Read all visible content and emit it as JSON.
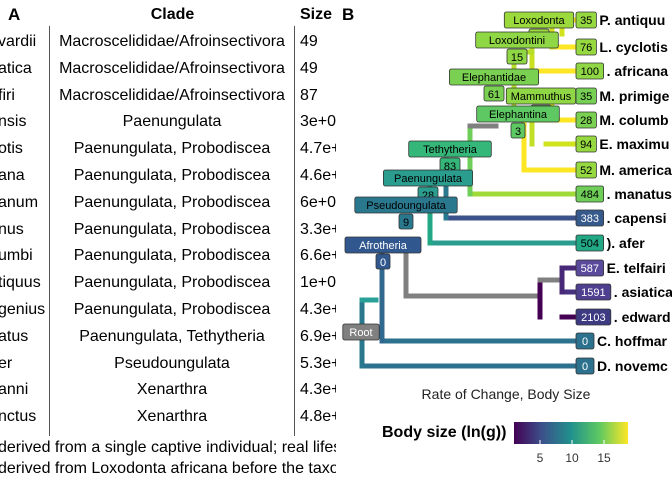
{
  "panel_a": {
    "letter": "A",
    "headers": {
      "species": "",
      "clade": "Clade",
      "size": "Size"
    },
    "rows": [
      {
        "species": "vardii",
        "clade": "Macroscelididae/Afroinsectivora",
        "size": "49"
      },
      {
        "species": "atica",
        "clade": "Macroscelididae/Afroinsectivora",
        "size": "49"
      },
      {
        "species": "firi",
        "clade": "Macroscelididae/Afroinsectivora",
        "size": "87"
      },
      {
        "species": "nsis",
        "clade": "Paenungulata",
        "size": "3e+0"
      },
      {
        "species": "otis",
        "clade": "Paenungulata, Probodiscea",
        "size": "4.7e+"
      },
      {
        "species": "ana",
        "clade": "Paenungulata, Probodiscea",
        "size": "4.6e+"
      },
      {
        "species": "anum",
        "clade": "Paenungulata, Probodiscea",
        "size": "6e+0"
      },
      {
        "species": "nus",
        "clade": "Paenungulata, Probodiscea",
        "size": "3.3e+"
      },
      {
        "species": "umbi",
        "clade": "Paenungulata, Probodiscea",
        "size": "6.6e+"
      },
      {
        "species": "tiquus",
        "clade": "Paenungulata, Probodiscea",
        "size": "1e+0"
      },
      {
        "species": "genius",
        "clade": "Paenungulata, Probodiscea",
        "size": "4.3e+"
      },
      {
        "species": "atus",
        "clade": "Paenungulata, Tethytheria",
        "size": "6.9e+"
      },
      {
        "species": "er",
        "clade": "Pseudoungulata",
        "size": "5.3e+"
      },
      {
        "species": "anni",
        "clade": "Xenarthra",
        "size": "4.3e+"
      },
      {
        "species": "nctus",
        "clade": "Xenarthra",
        "size": "4.8e+"
      }
    ],
    "footnotes": [
      "derived from a single captive individual; real lifes",
      "derived from Loxodonta africana before the taxo"
    ]
  },
  "panel_b": {
    "letter": "B",
    "xlabel": "Rate of Change, Body Size",
    "legend_title": "Body size (ln(g))",
    "legend_ticks": [
      "5",
      "10",
      "15"
    ],
    "colors": {
      "root_branch": "#808080",
      "tip_label_text": "#000000"
    },
    "clade_labels": [
      {
        "name": "Loxodonta",
        "rate": "35"
      },
      {
        "name": "Loxodontini",
        "rate": "15"
      },
      {
        "name": "Elephantidae",
        "rate": "61"
      },
      {
        "name": "Mammuthus",
        "rate": "35"
      },
      {
        "name": "Elephantina",
        "rate": "3"
      },
      {
        "name": "Tethytheria",
        "rate": "83"
      },
      {
        "name": "Paenungulata",
        "rate": "28"
      },
      {
        "name": "Pseudoungulata",
        "rate": "9"
      },
      {
        "name": "Afrotheria",
        "rate": "0"
      },
      {
        "name": "Root",
        "rate": ""
      }
    ],
    "tips": [
      {
        "label": "P. antiquu",
        "rate": "35"
      },
      {
        "label": "L. cyclotis",
        "rate": "76"
      },
      {
        "label": ". africana",
        "rate": "100"
      },
      {
        "label": "M. primige",
        "rate": "35"
      },
      {
        "label": "M. columb",
        "rate": "28"
      },
      {
        "label": "E. maximu",
        "rate": "94"
      },
      {
        "label": "M. america",
        "rate": "52"
      },
      {
        "label": ". manatus",
        "rate": "484"
      },
      {
        "label": ". capensi",
        "rate": "383"
      },
      {
        "label": "). afer",
        "rate": "504"
      },
      {
        "label": "E. telfairi",
        "rate": "587"
      },
      {
        "label": ". asiatica",
        "rate": "1591"
      },
      {
        "label": ". edward",
        "rate": "2103"
      },
      {
        "label": "C. hoffmar",
        "rate": "0"
      },
      {
        "label": "D. novemc",
        "rate": "0"
      }
    ]
  }
}
